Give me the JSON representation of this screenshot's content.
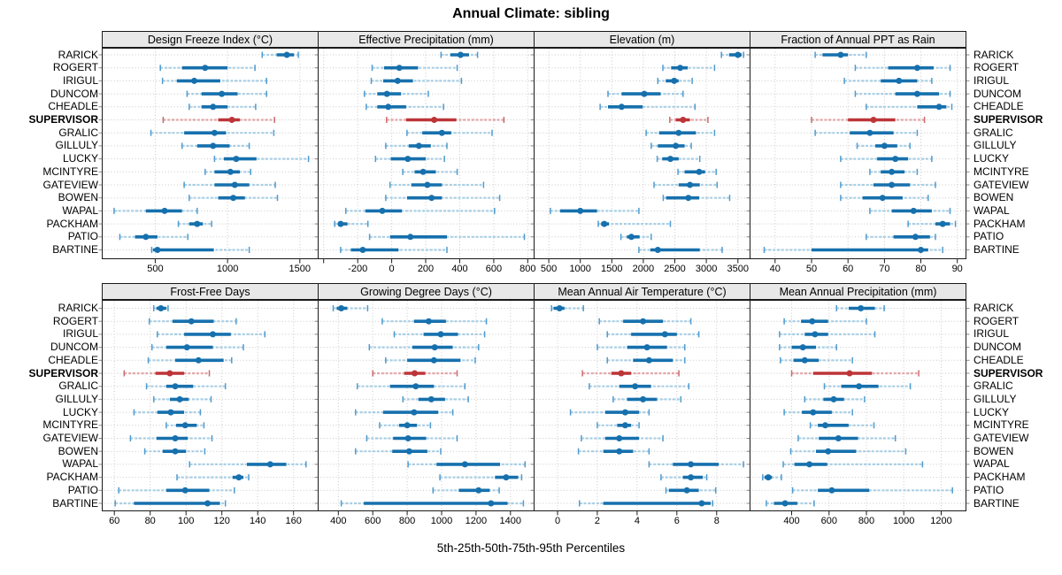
{
  "chart_data": {
    "type": "trellis-dotplot",
    "title": "Annual Climate: sibling",
    "xlabel": "5th-25th-50th-75th-95th Percentiles",
    "percentiles": [
      5,
      25,
      50,
      75,
      95
    ],
    "stations": [
      "RARICK",
      "ROGERT",
      "IRIGUL",
      "DUNCOM",
      "CHEADLE",
      "SUPERVISOR",
      "GRALIC",
      "GILLULY",
      "LUCKY",
      "MCINTYRE",
      "GATEVIEW",
      "BOWEN",
      "WAPAL",
      "PACKHAM",
      "PATIO",
      "BARTINE"
    ],
    "highlight_station": "SUPERVISOR",
    "colors": {
      "series": "#1670ad",
      "series_light": "#a9cfe5",
      "series_mid": "#4f9bce",
      "highlight": "#bd3538",
      "highlight_light": "#e4a6a8",
      "highlight_mid": "#cc6b6e",
      "header_bg": "#e8e8e8",
      "grid": "#c9c9c9",
      "border": "#1a1a1a"
    },
    "panels": [
      {
        "title": "Design Freeze Index (°C)",
        "row": 0,
        "col": 0,
        "xmin": 130,
        "xmax": 1630,
        "ticks": [
          500,
          1000,
          1500
        ],
        "tick_labels": [
          "500",
          "1000",
          "1500"
        ],
        "values": [
          [
            1240,
            1340,
            1410,
            1460,
            1490
          ],
          [
            535,
            685,
            845,
            1000,
            1190
          ],
          [
            550,
            650,
            770,
            950,
            1270
          ],
          [
            720,
            820,
            960,
            1070,
            1270
          ],
          [
            735,
            820,
            900,
            1000,
            1195
          ],
          [
            555,
            935,
            1030,
            1085,
            1325
          ],
          [
            470,
            700,
            910,
            990,
            1320
          ],
          [
            685,
            790,
            900,
            1015,
            1150
          ],
          [
            910,
            975,
            1060,
            1200,
            1560
          ],
          [
            845,
            910,
            1020,
            1085,
            1160
          ],
          [
            700,
            910,
            1050,
            1150,
            1330
          ],
          [
            735,
            935,
            1040,
            1120,
            1345
          ],
          [
            215,
            435,
            565,
            685,
            790
          ],
          [
            660,
            735,
            790,
            830,
            890
          ],
          [
            255,
            360,
            435,
            515,
            725
          ],
          [
            475,
            485,
            515,
            905,
            1150
          ]
        ]
      },
      {
        "title": "Effective Precipitation (mm)",
        "row": 0,
        "col": 1,
        "xmin": -435,
        "xmax": 840,
        "ticks": [
          -400,
          -200,
          0,
          200,
          400,
          600,
          800
        ],
        "tick_labels": [
          "",
          "-200",
          "0",
          "200",
          "400",
          "600",
          "800"
        ],
        "values": [
          [
            290,
            345,
            405,
            455,
            505
          ],
          [
            -115,
            -45,
            45,
            155,
            385
          ],
          [
            -120,
            -50,
            35,
            125,
            410
          ],
          [
            -160,
            -85,
            -28,
            55,
            215
          ],
          [
            -150,
            -85,
            -20,
            85,
            305
          ],
          [
            -30,
            85,
            250,
            380,
            660
          ],
          [
            90,
            180,
            295,
            350,
            590
          ],
          [
            -35,
            100,
            160,
            230,
            325
          ],
          [
            -95,
            -5,
            95,
            200,
            310
          ],
          [
            65,
            135,
            185,
            260,
            385
          ],
          [
            -10,
            115,
            210,
            295,
            540
          ],
          [
            -35,
            90,
            235,
            295,
            635
          ],
          [
            -270,
            -155,
            -55,
            60,
            605
          ],
          [
            -335,
            -315,
            -300,
            -260,
            -140
          ],
          [
            -130,
            -10,
            110,
            325,
            780
          ],
          [
            -300,
            -240,
            -170,
            40,
            325
          ]
        ]
      },
      {
        "title": "Elevation (m)",
        "row": 0,
        "col": 2,
        "xmin": 260,
        "xmax": 3700,
        "ticks": [
          500,
          1000,
          1500,
          2000,
          2500,
          3000,
          3500
        ],
        "tick_labels": [
          "500",
          "1000",
          "1500",
          "2000",
          "2500",
          "3000",
          "3500"
        ],
        "values": [
          [
            3240,
            3360,
            3500,
            3560,
            3590
          ],
          [
            2310,
            2440,
            2585,
            2705,
            3130
          ],
          [
            2230,
            2355,
            2490,
            2560,
            2775
          ],
          [
            1440,
            1655,
            2015,
            2275,
            2630
          ],
          [
            1315,
            1440,
            1655,
            1990,
            2820
          ],
          [
            2420,
            2515,
            2630,
            2740,
            3025
          ],
          [
            2045,
            2250,
            2560,
            2835,
            3130
          ],
          [
            2125,
            2230,
            2515,
            2655,
            2760
          ],
          [
            2220,
            2300,
            2430,
            2560,
            2895
          ],
          [
            2550,
            2655,
            2885,
            2980,
            3155
          ],
          [
            2170,
            2560,
            2740,
            2895,
            3170
          ],
          [
            2315,
            2360,
            2715,
            2885,
            3370
          ],
          [
            525,
            680,
            1000,
            1265,
            1930
          ],
          [
            1285,
            1330,
            1380,
            1455,
            2430
          ],
          [
            1645,
            1740,
            1810,
            1940,
            2125
          ],
          [
            1930,
            2110,
            2230,
            2895,
            3250
          ]
        ]
      },
      {
        "title": "Fraction of Annual PPT as Rain",
        "row": 0,
        "col": 3,
        "xmin": 33,
        "xmax": 92.5,
        "ticks": [
          40,
          50,
          60,
          70,
          80,
          90
        ],
        "tick_labels": [
          "40",
          "50",
          "60",
          "70",
          "80",
          "90"
        ],
        "values": [
          [
            51,
            53,
            58,
            60,
            65
          ],
          [
            62,
            71,
            79,
            83.5,
            88
          ],
          [
            59,
            69,
            74,
            79,
            83
          ],
          [
            62,
            73,
            79,
            85,
            88
          ],
          [
            65,
            79,
            85,
            87,
            88.5
          ],
          [
            50,
            60,
            67,
            73,
            81
          ],
          [
            51,
            60.5,
            66,
            72.5,
            79
          ],
          [
            62.5,
            67.5,
            70,
            73.5,
            77
          ],
          [
            58,
            68,
            73,
            76.5,
            83
          ],
          [
            66,
            69,
            72,
            75.5,
            79
          ],
          [
            58,
            67,
            72,
            77,
            84
          ],
          [
            58,
            64,
            69.5,
            75,
            82
          ],
          [
            66,
            72,
            78,
            83,
            88
          ],
          [
            76.5,
            84,
            86,
            88,
            89.5
          ],
          [
            65,
            72.5,
            78.5,
            82.5,
            84
          ],
          [
            37,
            50,
            80,
            82,
            86
          ]
        ]
      },
      {
        "title": "Frost-Free Days",
        "row": 1,
        "col": 0,
        "xmin": 53,
        "xmax": 174,
        "ticks": [
          60,
          80,
          100,
          120,
          140,
          160
        ],
        "tick_labels": [
          "60",
          "80",
          "100",
          "120",
          "140",
          "160"
        ],
        "values": [
          [
            82,
            83.5,
            86,
            89,
            90
          ],
          [
            79.5,
            92.5,
            103,
            115.5,
            128
          ],
          [
            84,
            99,
            115,
            125,
            144
          ],
          [
            81,
            89,
            100.5,
            115,
            132
          ],
          [
            79,
            94,
            107,
            121,
            125.5
          ],
          [
            65.5,
            83,
            91,
            99,
            113
          ],
          [
            78,
            89,
            94,
            104,
            122
          ],
          [
            82,
            91,
            96.5,
            101.5,
            114
          ],
          [
            71,
            84,
            91.5,
            99,
            108
          ],
          [
            89,
            94.5,
            99.5,
            106,
            110
          ],
          [
            69,
            83.5,
            94,
            101,
            114.5
          ],
          [
            77,
            87,
            94,
            100,
            110.5
          ],
          [
            102,
            134,
            147,
            156,
            167
          ],
          [
            95,
            126,
            129.5,
            132,
            135
          ],
          [
            62.5,
            89,
            99.5,
            113,
            127
          ],
          [
            60.5,
            71,
            112,
            119,
            122
          ]
        ]
      },
      {
        "title": "Growing Degree Days (°C)",
        "row": 1,
        "col": 1,
        "xmin": 280,
        "xmax": 1540,
        "ticks": [
          400,
          600,
          800,
          1000,
          1200,
          1400
        ],
        "tick_labels": [
          "400",
          "600",
          "800",
          "1000",
          "1200",
          "1400"
        ],
        "values": [
          [
            370,
            390,
            417,
            452,
            570
          ],
          [
            655,
            840,
            925,
            1025,
            1260
          ],
          [
            725,
            895,
            995,
            1095,
            1250
          ],
          [
            580,
            830,
            960,
            1065,
            1215
          ],
          [
            675,
            800,
            955,
            1110,
            1195
          ],
          [
            600,
            783,
            843,
            905,
            1090
          ],
          [
            510,
            700,
            850,
            955,
            1135
          ],
          [
            775,
            865,
            940,
            1020,
            1155
          ],
          [
            500,
            660,
            840,
            980,
            1065
          ],
          [
            640,
            753,
            800,
            857,
            935
          ],
          [
            565,
            718,
            805,
            910,
            1090
          ],
          [
            500,
            713,
            812,
            917,
            995
          ],
          [
            805,
            970,
            1135,
            1340,
            1485
          ],
          [
            990,
            1310,
            1375,
            1445,
            1465
          ],
          [
            950,
            1100,
            1215,
            1280,
            1335
          ],
          [
            417,
            548,
            1287,
            1383,
            1475
          ]
        ]
      },
      {
        "title": "Mean Annual Air Temperature (°C)",
        "row": 1,
        "col": 2,
        "xmin": -1.2,
        "xmax": 9.7,
        "ticks": [
          0,
          2,
          4,
          6,
          8
        ],
        "tick_labels": [
          "0",
          "2",
          "4",
          "6",
          "8"
        ],
        "values": [
          [
            -0.3,
            -0.2,
            0.1,
            0.35,
            1.3
          ],
          [
            2.1,
            3.3,
            4.3,
            5.3,
            6.7
          ],
          [
            2.5,
            3.7,
            5.4,
            6.0,
            7.1
          ],
          [
            2.0,
            3.5,
            4.5,
            5.5,
            6.4
          ],
          [
            2.5,
            3.8,
            4.6,
            5.8,
            6.4
          ],
          [
            1.25,
            2.7,
            3.2,
            3.7,
            6.1
          ],
          [
            1.6,
            3.1,
            3.9,
            4.7,
            6.6
          ],
          [
            2.8,
            3.5,
            4.3,
            5.0,
            6.2
          ],
          [
            0.65,
            2.4,
            3.4,
            4.1,
            4.6
          ],
          [
            2.0,
            3.0,
            3.4,
            3.7,
            4.1
          ],
          [
            1.2,
            2.4,
            3.1,
            4.1,
            5.3
          ],
          [
            1.05,
            2.3,
            3.1,
            3.8,
            4.6
          ],
          [
            4.6,
            5.8,
            6.7,
            8.1,
            9.35
          ],
          [
            5.2,
            6.3,
            6.7,
            7.3,
            7.5
          ],
          [
            5.45,
            5.6,
            6.5,
            7.1,
            7.95
          ],
          [
            1.1,
            2.3,
            7.25,
            7.7,
            7.8
          ]
        ]
      },
      {
        "title": "Mean Annual Precipitation (mm)",
        "row": 1,
        "col": 3,
        "xmin": 175,
        "xmax": 1335,
        "ticks": [
          400,
          600,
          800,
          1000,
          1200
        ],
        "tick_labels": [
          "400",
          "600",
          "800",
          "1000",
          "1200"
        ],
        "values": [
          [
            640,
            705,
            770,
            845,
            895
          ],
          [
            360,
            450,
            510,
            595,
            800
          ],
          [
            335,
            470,
            525,
            595,
            845
          ],
          [
            335,
            400,
            460,
            530,
            640
          ],
          [
            340,
            410,
            470,
            545,
            725
          ],
          [
            400,
            515,
            710,
            830,
            1080
          ],
          [
            575,
            665,
            760,
            865,
            1035
          ],
          [
            470,
            570,
            625,
            680,
            790
          ],
          [
            360,
            455,
            515,
            615,
            725
          ],
          [
            500,
            540,
            580,
            705,
            840
          ],
          [
            435,
            545,
            650,
            755,
            955
          ],
          [
            395,
            530,
            595,
            745,
            1010
          ],
          [
            355,
            415,
            495,
            590,
            1100
          ],
          [
            245,
            255,
            275,
            295,
            345
          ],
          [
            405,
            540,
            615,
            815,
            1260
          ],
          [
            265,
            305,
            365,
            430,
            520
          ]
        ]
      }
    ]
  }
}
